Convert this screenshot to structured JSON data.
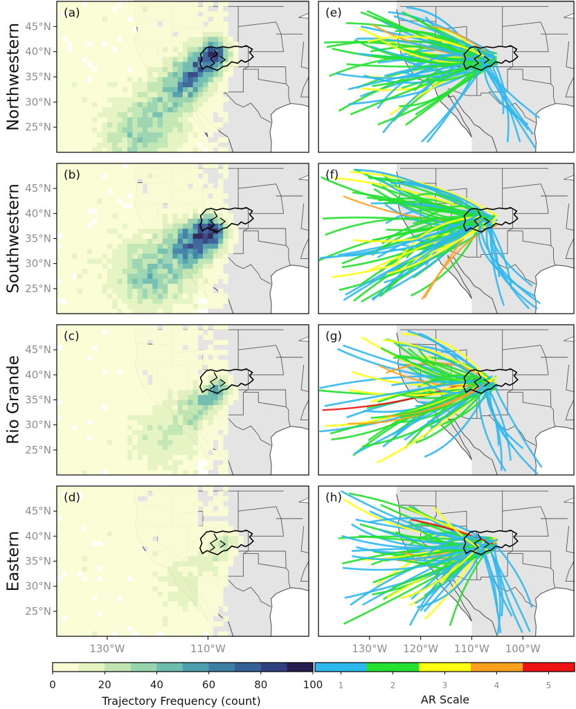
{
  "chart_data": {
    "type": "map-panels",
    "rows": [
      {
        "label": "Northwestern",
        "freq_panel": "(a)",
        "ar_panel": "(e)",
        "basin_lon": -107,
        "basin_lat": 38.5,
        "peak_lon": -109,
        "peak_lat": 39.5,
        "source_lon": -118,
        "source_lat": 30,
        "intensity": 0.85,
        "spread": 0.9
      },
      {
        "label": "Southwestern",
        "freq_panel": "(b)",
        "ar_panel": "(f)",
        "basin_lon": -107,
        "basin_lat": 38.5,
        "peak_lon": -110,
        "peak_lat": 36,
        "source_lon": -117,
        "source_lat": 31,
        "intensity": 1.0,
        "spread": 1.0
      },
      {
        "label": "Rio Grande",
        "freq_panel": "(c)",
        "ar_panel": "(g)",
        "basin_lon": -107,
        "basin_lat": 38.5,
        "peak_lon": -108,
        "peak_lat": 37,
        "source_lon": -115,
        "source_lat": 31,
        "intensity": 0.45,
        "spread": 0.7
      },
      {
        "label": "Eastern",
        "freq_panel": "(d)",
        "ar_panel": "(h)",
        "basin_lon": -107,
        "basin_lat": 38.5,
        "peak_lon": -106,
        "peak_lat": 39,
        "source_lon": -112,
        "source_lat": 33,
        "intensity": 0.2,
        "spread": 0.6
      }
    ],
    "lat_ticks": [
      "45°N",
      "40°N",
      "35°N",
      "30°N",
      "25°N"
    ],
    "lat_values": [
      45,
      40,
      35,
      30,
      25
    ],
    "left_lon_ticks": [
      "130°W",
      "110°W"
    ],
    "left_lon_values": [
      -130,
      -110
    ],
    "right_lon_ticks": [
      "130°W",
      "120°W",
      "110°W",
      "100°W"
    ],
    "right_lon_values": [
      -130,
      -120,
      -110,
      -100
    ],
    "lon_range": [
      -140,
      -90
    ],
    "lat_range": [
      20,
      50
    ],
    "freq_colorbar": {
      "title": "Trajectory Frequency (count)",
      "ticks": [
        "0",
        "20",
        "40",
        "60",
        "80",
        "100"
      ],
      "tick_values": [
        0,
        20,
        40,
        60,
        80,
        100
      ],
      "range": [
        0,
        100
      ],
      "colors": [
        "#fbfdd4",
        "#e4f3c0",
        "#c0e5b0",
        "#97d3ad",
        "#6dbcae",
        "#4d9eac",
        "#3b7fa5",
        "#355f97",
        "#2f3f80",
        "#251e4d"
      ]
    },
    "ar_colorbar": {
      "title": "AR Scale",
      "ticks": [
        "1",
        "2",
        "3",
        "4",
        "5"
      ],
      "tick_values": [
        1,
        2,
        3,
        4,
        5
      ],
      "range": [
        0.5,
        5.5
      ],
      "colors": [
        "#2fb8f0",
        "#25e030",
        "#ffff14",
        "#ffa01e",
        "#ee1212"
      ]
    },
    "land_color": "#e4e4e4",
    "ocean_color": "#ffffff",
    "border_color": "#555555"
  }
}
